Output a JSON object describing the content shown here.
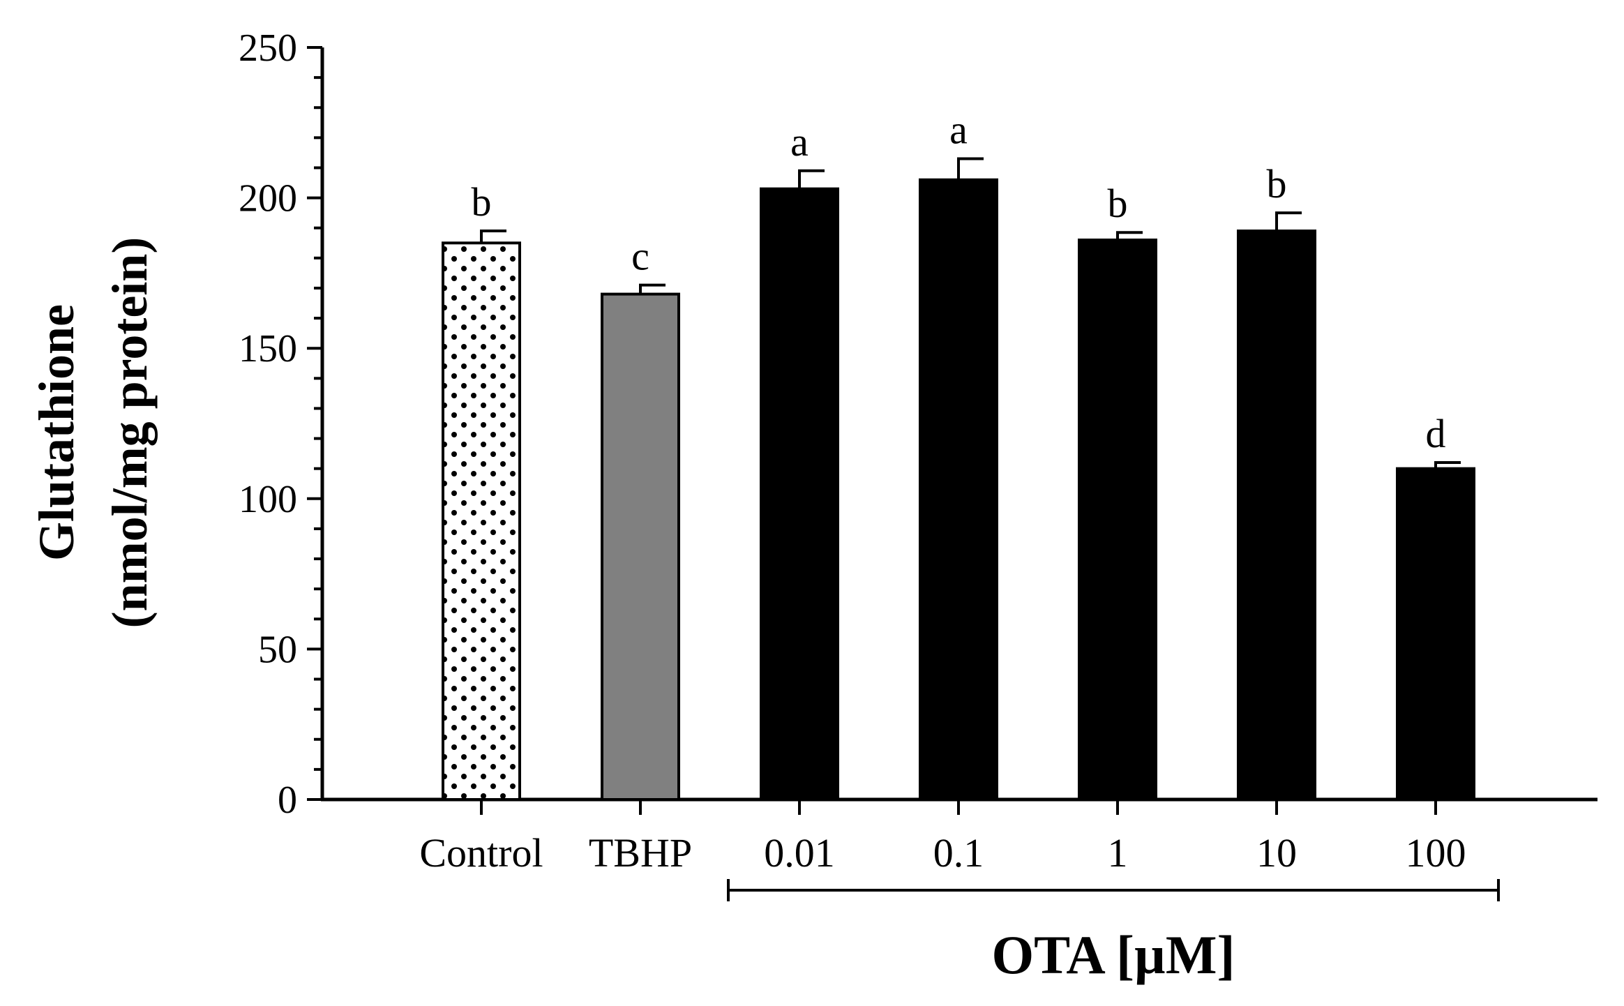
{
  "chart_data": {
    "type": "bar",
    "title": "",
    "xlabel": "",
    "ylabel_line1": "Glutathione",
    "ylabel_line2": "(nmol/mg protein)",
    "ylim": [
      0,
      250
    ],
    "yticks": [
      0,
      50,
      100,
      150,
      200,
      250
    ],
    "ytick_labels": [
      "0",
      "50",
      "100",
      "150",
      "200",
      "250"
    ],
    "categories": [
      "Control",
      "TBHP",
      "0.01",
      "0.1",
      "1",
      "10",
      "100"
    ],
    "values": [
      185,
      168,
      203,
      206,
      186,
      189,
      110
    ],
    "errors": [
      4,
      3,
      6,
      7,
      2.5,
      6,
      2
    ],
    "significance": [
      "b",
      "c",
      "a",
      "a",
      "b",
      "b",
      "d"
    ],
    "bar_styles": [
      "dotted",
      "gray",
      "black",
      "black",
      "black",
      "black",
      "black"
    ],
    "colors": {
      "gray": "#808080",
      "black": "#000000",
      "dotted_bg": "#ffffff"
    },
    "group": {
      "label": "OTA [µM]",
      "first_index": 2,
      "last_index": 6
    }
  }
}
